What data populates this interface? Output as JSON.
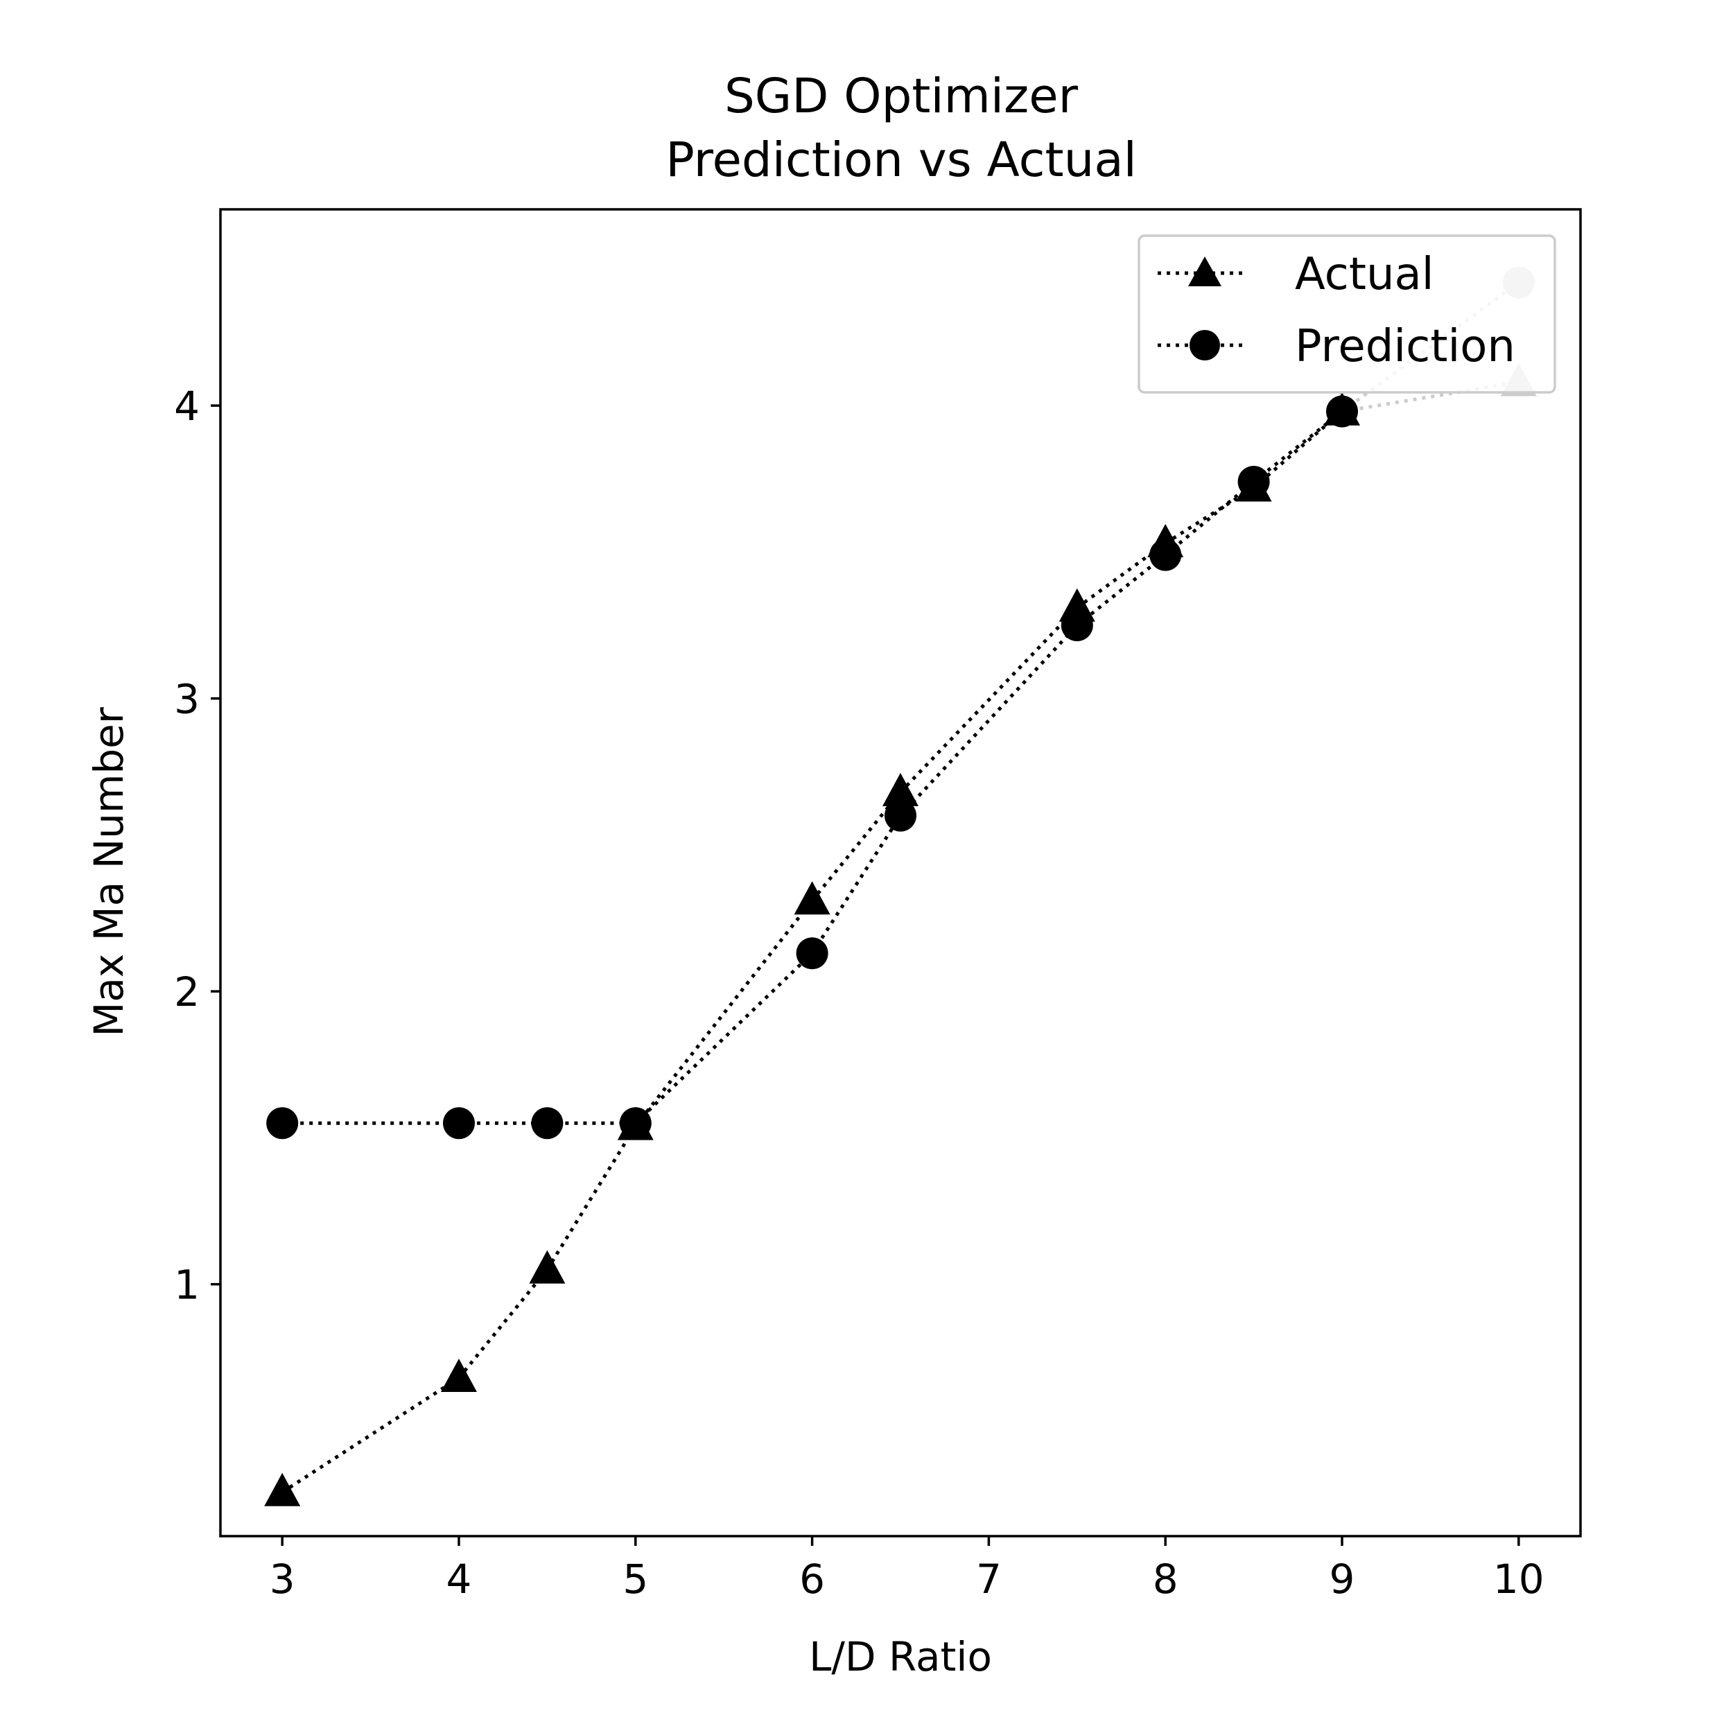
{
  "chart_data": {
    "type": "line",
    "title": "SGD Optimizer",
    "subtitle": "Prediction vs Actual",
    "xlabel": "L/D Ratio",
    "ylabel": "Max Ma Number",
    "xlim": [
      2.65,
      10.35
    ],
    "ylim": [
      0.14,
      4.67
    ],
    "xticks": [
      3,
      4,
      5,
      6,
      7,
      8,
      9,
      10
    ],
    "yticks": [
      1,
      2,
      3,
      4
    ],
    "grid": false,
    "legend_position": "top-right",
    "x": [
      3,
      4,
      4.5,
      5,
      6,
      6.5,
      7.5,
      8,
      8.5,
      9,
      10
    ],
    "series": [
      {
        "name": "Actual",
        "marker": "triangle",
        "line_style": "dotted",
        "color": "#000000",
        "values": [
          0.29,
          0.68,
          1.05,
          1.54,
          2.31,
          2.68,
          3.31,
          3.53,
          3.72,
          3.98,
          4.08
        ]
      },
      {
        "name": "Prediction",
        "marker": "circle",
        "line_style": "dotted",
        "color": "#000000",
        "values": [
          1.55,
          1.55,
          1.55,
          1.55,
          2.13,
          2.6,
          3.25,
          3.49,
          3.74,
          3.98,
          4.42
        ]
      }
    ],
    "faded_color": "#cccccc"
  }
}
